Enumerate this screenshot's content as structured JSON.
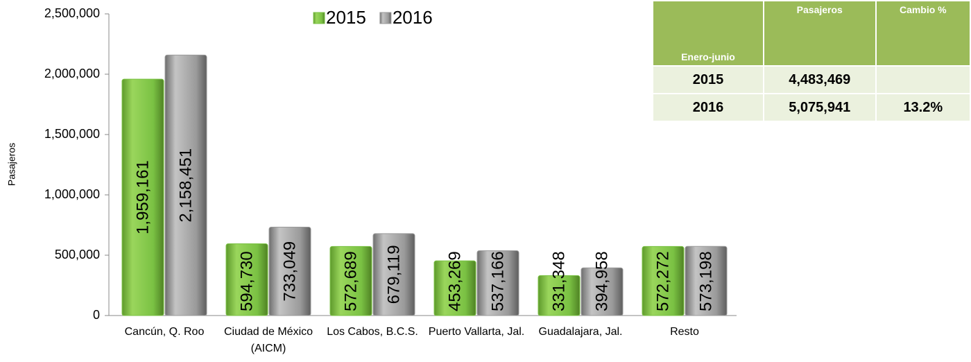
{
  "chart_data": {
    "type": "bar",
    "ylabel": "Pasajeros",
    "categories": [
      "Cancún, Q. Roo",
      "Ciudad de México (AICM)",
      "Los Cabos, B.C.S.",
      "Puerto Vallarta, Jal.",
      "Guadalajara, Jal.",
      "Resto"
    ],
    "series": [
      {
        "name": "2015",
        "color": "#7ac143",
        "values": [
          1959161,
          594730,
          572689,
          453269,
          331348,
          572272
        ],
        "value_labels": [
          "1,959,161",
          "594,730",
          "572,689",
          "453,269",
          "331,348",
          "572,272"
        ]
      },
      {
        "name": "2016",
        "color": "#9a9a9a",
        "values": [
          2158451,
          733049,
          679119,
          537166,
          394958,
          573198
        ],
        "value_labels": [
          "2,158,451",
          "733,049",
          "679,119",
          "537,166",
          "394,958",
          "573,198"
        ]
      }
    ],
    "ylim": [
      0,
      2500000
    ],
    "yticks": [
      0,
      {
        "value": 500000,
        "label": "500,000"
      },
      {
        "value": 1000000,
        "label": "1,000,000"
      },
      {
        "value": 1500000,
        "label": "1,500,000"
      },
      {
        "value": 2000000,
        "label": "2,000,000"
      },
      {
        "value": 2500000,
        "label": "2,500,000"
      }
    ],
    "legend": "top"
  },
  "table": {
    "header": [
      "Enero-junio",
      "Pasajeros",
      "Cambio %"
    ],
    "rows": [
      [
        "2015",
        "4,483,469"
      ],
      [
        "2016",
        "5,075,941",
        "13.2%"
      ]
    ]
  }
}
